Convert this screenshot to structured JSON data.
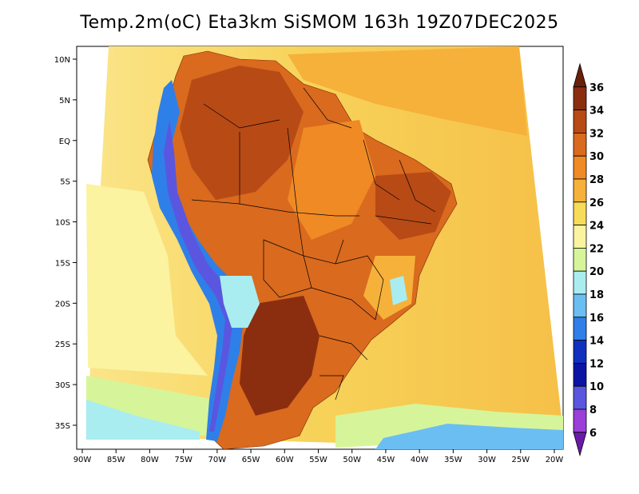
{
  "title": "Temp.2m(oC) Eta3km SiSMOM 163h 19Z07DEC2025",
  "axes": {
    "x_ticks": [
      "90W",
      "85W",
      "80W",
      "75W",
      "70W",
      "65W",
      "60W",
      "55W",
      "50W",
      "45W",
      "40W",
      "35W",
      "30W",
      "25W",
      "20W"
    ],
    "y_ticks": [
      "10N",
      "5N",
      "EQ",
      "5S",
      "10S",
      "15S",
      "20S",
      "25S",
      "30S",
      "35S"
    ]
  },
  "colorbar": {
    "labels": [
      "36",
      "34",
      "32",
      "30",
      "28",
      "26",
      "24",
      "22",
      "20",
      "18",
      "16",
      "14",
      "12",
      "10",
      "8",
      "6"
    ],
    "colors": [
      "#6b1f0a",
      "#8a2e0f",
      "#b84a16",
      "#d96a1e",
      "#ef8a25",
      "#f6b13a",
      "#f7dc5a",
      "#fbf3a0",
      "#d6f59a",
      "#a9edf0",
      "#6bbef2",
      "#2f7fe8",
      "#1030c0",
      "#0c14a4",
      "#5a56e0",
      "#9b3fd8",
      "#6a1aa8"
    ]
  }
}
